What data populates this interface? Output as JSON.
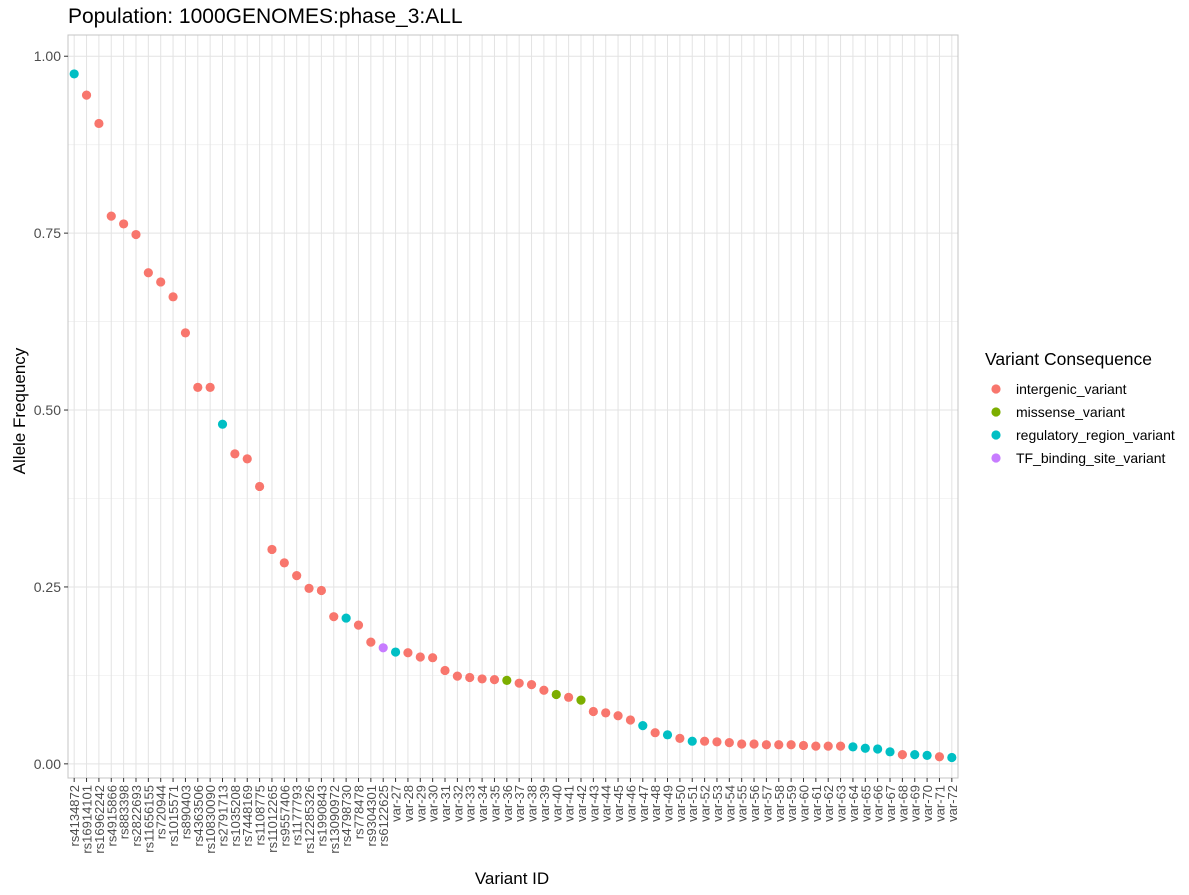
{
  "chart_data": {
    "type": "scatter",
    "title": "Population: 1000GENOMES:phase_3:ALL",
    "xlabel": "Variant ID",
    "ylabel": "Allele Frequency",
    "ylim": [
      -0.02,
      1.03
    ],
    "yticks": [
      0.0,
      0.25,
      0.5,
      0.75,
      1.0
    ],
    "ytick_labels": [
      "0.00",
      "0.25",
      "0.50",
      "0.75",
      "1.00"
    ],
    "grid": true,
    "legend": {
      "title": "Variant Consequence",
      "position": "right",
      "entries": [
        {
          "name": "intergenic_variant",
          "color": "#F8766D"
        },
        {
          "name": "missense_variant",
          "color": "#7CAE00"
        },
        {
          "name": "regulatory_region_variant",
          "color": "#00BFC4"
        },
        {
          "name": "TF_binding_site_variant",
          "color": "#C77CFF"
        }
      ]
    },
    "points": [
      {
        "id": "rs4134872",
        "y": 0.975,
        "consequence": "regulatory_region_variant"
      },
      {
        "id": "rs16914101",
        "y": 0.945,
        "consequence": "intergenic_variant"
      },
      {
        "id": "rs16962242",
        "y": 0.905,
        "consequence": "intergenic_variant"
      },
      {
        "id": "rs4915866",
        "y": 0.774,
        "consequence": "intergenic_variant"
      },
      {
        "id": "rs883398",
        "y": 0.763,
        "consequence": "intergenic_variant"
      },
      {
        "id": "rs2822693",
        "y": 0.748,
        "consequence": "intergenic_variant"
      },
      {
        "id": "rs11656155",
        "y": 0.694,
        "consequence": "intergenic_variant"
      },
      {
        "id": "rs720944",
        "y": 0.681,
        "consequence": "intergenic_variant"
      },
      {
        "id": "rs1015571",
        "y": 0.66,
        "consequence": "intergenic_variant"
      },
      {
        "id": "rs890403",
        "y": 0.609,
        "consequence": "intergenic_variant"
      },
      {
        "id": "rs4363506",
        "y": 0.532,
        "consequence": "intergenic_variant"
      },
      {
        "id": "rs10830090",
        "y": 0.532,
        "consequence": "intergenic_variant"
      },
      {
        "id": "rs2791713",
        "y": 0.48,
        "consequence": "regulatory_region_variant"
      },
      {
        "id": "rs1035208",
        "y": 0.438,
        "consequence": "intergenic_variant"
      },
      {
        "id": "rs7448169",
        "y": 0.431,
        "consequence": "intergenic_variant"
      },
      {
        "id": "rs1108775",
        "y": 0.392,
        "consequence": "intergenic_variant"
      },
      {
        "id": "rs11012265",
        "y": 0.303,
        "consequence": "intergenic_variant"
      },
      {
        "id": "rs9557406",
        "y": 0.284,
        "consequence": "intergenic_variant"
      },
      {
        "id": "rs1177793",
        "y": 0.266,
        "consequence": "intergenic_variant"
      },
      {
        "id": "rs12285326",
        "y": 0.248,
        "consequence": "intergenic_variant"
      },
      {
        "id": "rs1990843",
        "y": 0.245,
        "consequence": "intergenic_variant"
      },
      {
        "id": "rs13090972",
        "y": 0.208,
        "consequence": "intergenic_variant"
      },
      {
        "id": "rs4798730",
        "y": 0.206,
        "consequence": "regulatory_region_variant"
      },
      {
        "id": "rs778478",
        "y": 0.196,
        "consequence": "intergenic_variant"
      },
      {
        "id": "rs9304301",
        "y": 0.172,
        "consequence": "intergenic_variant"
      },
      {
        "id": "rs6122625",
        "y": 0.164,
        "consequence": "TF_binding_site_variant"
      },
      {
        "id": "var-27",
        "y": 0.158,
        "consequence": "regulatory_region_variant"
      },
      {
        "id": "var-28",
        "y": 0.157,
        "consequence": "intergenic_variant"
      },
      {
        "id": "var-29",
        "y": 0.151,
        "consequence": "intergenic_variant"
      },
      {
        "id": "var-30",
        "y": 0.15,
        "consequence": "intergenic_variant"
      },
      {
        "id": "var-31",
        "y": 0.132,
        "consequence": "intergenic_variant"
      },
      {
        "id": "var-32",
        "y": 0.124,
        "consequence": "intergenic_variant"
      },
      {
        "id": "var-33",
        "y": 0.122,
        "consequence": "intergenic_variant"
      },
      {
        "id": "var-34",
        "y": 0.12,
        "consequence": "intergenic_variant"
      },
      {
        "id": "var-35",
        "y": 0.119,
        "consequence": "intergenic_variant"
      },
      {
        "id": "var-36",
        "y": 0.118,
        "consequence": "missense_variant"
      },
      {
        "id": "var-37",
        "y": 0.114,
        "consequence": "intergenic_variant"
      },
      {
        "id": "var-38",
        "y": 0.112,
        "consequence": "intergenic_variant"
      },
      {
        "id": "var-39",
        "y": 0.104,
        "consequence": "intergenic_variant"
      },
      {
        "id": "var-40",
        "y": 0.098,
        "consequence": "missense_variant"
      },
      {
        "id": "var-41",
        "y": 0.094,
        "consequence": "intergenic_variant"
      },
      {
        "id": "var-42",
        "y": 0.09,
        "consequence": "missense_variant"
      },
      {
        "id": "var-43",
        "y": 0.074,
        "consequence": "intergenic_variant"
      },
      {
        "id": "var-44",
        "y": 0.072,
        "consequence": "intergenic_variant"
      },
      {
        "id": "var-45",
        "y": 0.068,
        "consequence": "intergenic_variant"
      },
      {
        "id": "var-46",
        "y": 0.062,
        "consequence": "intergenic_variant"
      },
      {
        "id": "var-47",
        "y": 0.054,
        "consequence": "regulatory_region_variant"
      },
      {
        "id": "var-48",
        "y": 0.044,
        "consequence": "intergenic_variant"
      },
      {
        "id": "var-49",
        "y": 0.041,
        "consequence": "regulatory_region_variant"
      },
      {
        "id": "var-50",
        "y": 0.036,
        "consequence": "intergenic_variant"
      },
      {
        "id": "var-51",
        "y": 0.032,
        "consequence": "regulatory_region_variant"
      },
      {
        "id": "var-52",
        "y": 0.032,
        "consequence": "intergenic_variant"
      },
      {
        "id": "var-53",
        "y": 0.031,
        "consequence": "intergenic_variant"
      },
      {
        "id": "var-54",
        "y": 0.03,
        "consequence": "intergenic_variant"
      },
      {
        "id": "var-55",
        "y": 0.028,
        "consequence": "intergenic_variant"
      },
      {
        "id": "var-56",
        "y": 0.028,
        "consequence": "intergenic_variant"
      },
      {
        "id": "var-57",
        "y": 0.027,
        "consequence": "intergenic_variant"
      },
      {
        "id": "var-58",
        "y": 0.027,
        "consequence": "intergenic_variant"
      },
      {
        "id": "var-59",
        "y": 0.027,
        "consequence": "intergenic_variant"
      },
      {
        "id": "var-60",
        "y": 0.026,
        "consequence": "intergenic_variant"
      },
      {
        "id": "var-61",
        "y": 0.025,
        "consequence": "intergenic_variant"
      },
      {
        "id": "var-62",
        "y": 0.025,
        "consequence": "intergenic_variant"
      },
      {
        "id": "var-63",
        "y": 0.025,
        "consequence": "intergenic_variant"
      },
      {
        "id": "var-64",
        "y": 0.024,
        "consequence": "regulatory_region_variant"
      },
      {
        "id": "var-65",
        "y": 0.022,
        "consequence": "regulatory_region_variant"
      },
      {
        "id": "var-66",
        "y": 0.021,
        "consequence": "regulatory_region_variant"
      },
      {
        "id": "var-67",
        "y": 0.017,
        "consequence": "regulatory_region_variant"
      },
      {
        "id": "var-68",
        "y": 0.013,
        "consequence": "intergenic_variant"
      },
      {
        "id": "var-69",
        "y": 0.013,
        "consequence": "regulatory_region_variant"
      },
      {
        "id": "var-70",
        "y": 0.012,
        "consequence": "regulatory_region_variant"
      },
      {
        "id": "var-71",
        "y": 0.01,
        "consequence": "intergenic_variant"
      },
      {
        "id": "var-72",
        "y": 0.009,
        "consequence": "regulatory_region_variant"
      }
    ]
  }
}
